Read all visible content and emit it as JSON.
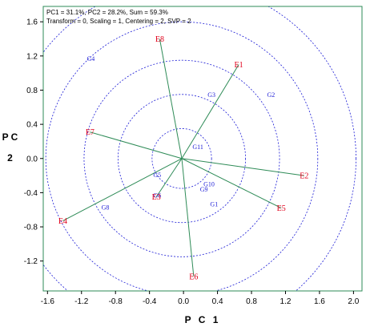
{
  "chart_data": {
    "type": "scatter",
    "info_lines": [
      "PC1 = 31.1%, PC2 = 28.2%, Sum = 59.3%",
      "Transform = 0, Scaling = 1, Centering = 2, SVP = 2"
    ],
    "xlabel": "P C 1",
    "ylabel": "P C 2",
    "xlim": [
      -1.65,
      2.1
    ],
    "ylim": [
      -1.55,
      1.78
    ],
    "x_ticks": [
      {
        "v": -1.6,
        "label": "-1.6"
      },
      {
        "v": -1.2,
        "label": "-1.2"
      },
      {
        "v": -0.8,
        "label": "-0.8"
      },
      {
        "v": -0.4,
        "label": "-0.4"
      },
      {
        "v": 0.0,
        "label": "0.0"
      },
      {
        "v": 0.4,
        "label": "0.4"
      },
      {
        "v": 0.8,
        "label": "0.8"
      },
      {
        "v": 1.2,
        "label": "1.2"
      },
      {
        "v": 1.6,
        "label": "1.6"
      },
      {
        "v": 2.0,
        "label": "2.0"
      }
    ],
    "y_ticks": [
      {
        "v": 1.6,
        "label": "1.6"
      },
      {
        "v": 1.2,
        "label": "1.2"
      },
      {
        "v": 0.8,
        "label": "0.8"
      },
      {
        "v": 0.4,
        "label": "0.4"
      },
      {
        "v": 0.0,
        "label": "0.0"
      },
      {
        "v": -0.4,
        "label": "-0.4"
      },
      {
        "v": -0.8,
        "label": "-0.8"
      },
      {
        "v": -1.2,
        "label": "-1.2"
      }
    ],
    "origin": [
      -0.02,
      0.0
    ],
    "circle_radii": [
      0.35,
      0.75,
      1.15,
      1.6,
      2.05
    ],
    "environments": [
      {
        "label": "E1",
        "x": 0.65,
        "y": 1.1
      },
      {
        "label": "E2",
        "x": 1.42,
        "y": -0.2
      },
      {
        "label": "E3",
        "x": -0.32,
        "y": -0.45
      },
      {
        "label": "E4",
        "x": -1.42,
        "y": -0.73
      },
      {
        "label": "E5",
        "x": 1.15,
        "y": -0.58
      },
      {
        "label": "E6",
        "x": 0.12,
        "y": -1.38
      },
      {
        "label": "E7",
        "x": -1.1,
        "y": 0.31
      },
      {
        "label": "E8",
        "x": -0.28,
        "y": 1.4
      }
    ],
    "genotypes": [
      {
        "label": "G1",
        "x": 0.36,
        "y": -0.53
      },
      {
        "label": "G2",
        "x": 1.03,
        "y": 0.75
      },
      {
        "label": "G3",
        "x": 0.33,
        "y": 0.75
      },
      {
        "label": "G4",
        "x": -1.09,
        "y": 1.17
      },
      {
        "label": "G5",
        "x": -0.31,
        "y": -0.19
      },
      {
        "label": "G6",
        "x": -0.31,
        "y": -0.43
      },
      {
        "label": "G8",
        "x": -0.92,
        "y": -0.57
      },
      {
        "label": "G9",
        "x": 0.24,
        "y": -0.36
      },
      {
        "label": "G10",
        "x": 0.3,
        "y": -0.3
      },
      {
        "label": "G11",
        "x": 0.17,
        "y": 0.14
      }
    ],
    "colors": {
      "env_line": "#2e8b57",
      "env_label": "#e0001b",
      "genotype_label": "#1c1cd6",
      "circle": "#1c1cd6",
      "frame": "#2e8b57"
    }
  }
}
